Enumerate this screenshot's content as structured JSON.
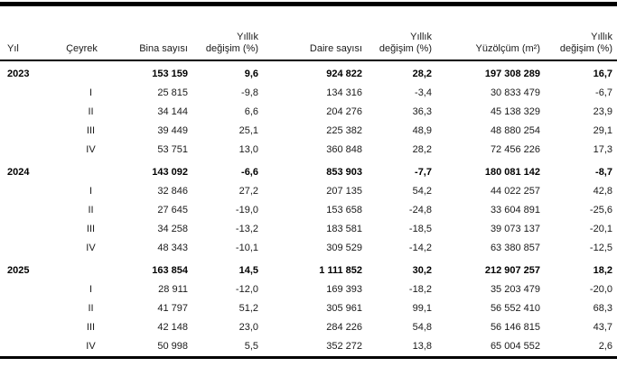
{
  "colors": {
    "background": "#ffffff",
    "text": "#1a1a1a",
    "bold_text": "#000000",
    "rule": "#000000"
  },
  "table": {
    "header_labels": [
      "Yıl",
      "Çeyrek",
      "Bina sayısı",
      "Yıllık\ndeğişim (%)",
      "Daire sayısı",
      "Yıllık\ndeğişim (%)",
      "Yüzölçüm (m²)",
      "Yıllık\ndeğişim (%)"
    ],
    "column_keys": [
      "yil",
      "ceyrek",
      "bina-sayisi",
      "bina-yillik-degisim",
      "daire-sayisi",
      "daire-yillik-degisim",
      "yuzolcum",
      "yuzolcum-yillik-degisim"
    ]
  },
  "chart_data": {
    "type": "table",
    "columns": [
      "Yıl",
      "Çeyrek",
      "Bina sayısı",
      "Yıllık değişim (%)",
      "Daire sayısı",
      "Yıllık değişim (%)",
      "Yüzölçüm (m²)",
      "Yıllık değişim (%)"
    ],
    "rows": [
      {
        "bold": true,
        "cells": [
          "2023",
          "",
          "153 159",
          "9,6",
          "924 822",
          "28,2",
          "197 308 289",
          "16,7"
        ]
      },
      {
        "bold": false,
        "cells": [
          "",
          "I",
          "25 815",
          "-9,8",
          "134 316",
          "-3,4",
          "30 833 479",
          "-6,7"
        ]
      },
      {
        "bold": false,
        "cells": [
          "",
          "II",
          "34 144",
          "6,6",
          "204 276",
          "36,3",
          "45 138 329",
          "23,9"
        ]
      },
      {
        "bold": false,
        "cells": [
          "",
          "III",
          "39 449",
          "25,1",
          "225 382",
          "48,9",
          "48 880 254",
          "29,1"
        ]
      },
      {
        "bold": false,
        "cells": [
          "",
          "IV",
          "53 751",
          "13,0",
          "360 848",
          "28,2",
          "72 456 226",
          "17,3"
        ]
      },
      {
        "bold": true,
        "cells": [
          "2024",
          "",
          "143 092",
          "-6,6",
          "853 903",
          "-7,7",
          "180 081 142",
          "-8,7"
        ]
      },
      {
        "bold": false,
        "cells": [
          "",
          "I",
          "32 846",
          "27,2",
          "207 135",
          "54,2",
          "44 022 257",
          "42,8"
        ]
      },
      {
        "bold": false,
        "cells": [
          "",
          "II",
          "27 645",
          "-19,0",
          "153 658",
          "-24,8",
          "33 604 891",
          "-25,6"
        ]
      },
      {
        "bold": false,
        "cells": [
          "",
          "III",
          "34 258",
          "-13,2",
          "183 581",
          "-18,5",
          "39 073 137",
          "-20,1"
        ]
      },
      {
        "bold": false,
        "cells": [
          "",
          "IV",
          "48 343",
          "-10,1",
          "309 529",
          "-14,2",
          "63 380 857",
          "-12,5"
        ]
      },
      {
        "bold": true,
        "cells": [
          "2025",
          "",
          "163 854",
          "14,5",
          "1 111 852",
          "30,2",
          "212 907 257",
          "18,2"
        ]
      },
      {
        "bold": false,
        "cells": [
          "",
          "I",
          "28 911",
          "-12,0",
          "169 393",
          "-18,2",
          "35 203 479",
          "-20,0"
        ]
      },
      {
        "bold": false,
        "cells": [
          "",
          "II",
          "41 797",
          "51,2",
          "305 961",
          "99,1",
          "56 552 410",
          "68,3"
        ]
      },
      {
        "bold": false,
        "cells": [
          "",
          "III",
          "42 148",
          "23,0",
          "284 226",
          "54,8",
          "56 146 815",
          "43,7"
        ]
      },
      {
        "bold": false,
        "cells": [
          "",
          "IV",
          "50 998",
          "5,5",
          "352 272",
          "13,8",
          "65 004 552",
          "2,6"
        ]
      }
    ]
  }
}
